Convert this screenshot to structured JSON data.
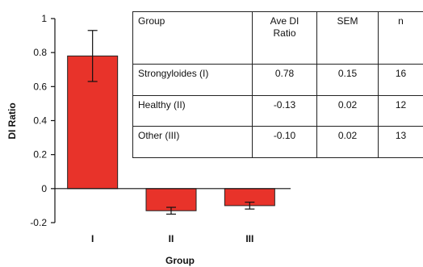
{
  "chart_data": {
    "type": "bar",
    "xlabel": "Group",
    "ylabel": "DI Ratio",
    "ylim": [
      -0.2,
      1
    ],
    "yticks": [
      -0.2,
      0,
      0.2,
      0.4,
      0.6,
      0.8,
      1
    ],
    "ytick_labels": [
      "-0.2",
      "0",
      "0.2",
      "0.4",
      "0.6",
      "0.8",
      "1"
    ],
    "categories": [
      "I",
      "II",
      "III"
    ],
    "values": [
      0.78,
      -0.13,
      -0.1
    ],
    "errors": [
      0.15,
      0.02,
      0.02
    ],
    "bar_color": "#e8332a",
    "grid": false
  },
  "table": {
    "headers": [
      "Group",
      "Ave DI Ratio",
      "SEM",
      "n"
    ],
    "rows": [
      [
        "Strongyloides (I)",
        "0.78",
        "0.15",
        "16"
      ],
      [
        "Healthy (II)",
        "-0.13",
        "0.02",
        "12"
      ],
      [
        "Other (III)",
        "-0.10",
        "0.02",
        "13"
      ]
    ]
  }
}
